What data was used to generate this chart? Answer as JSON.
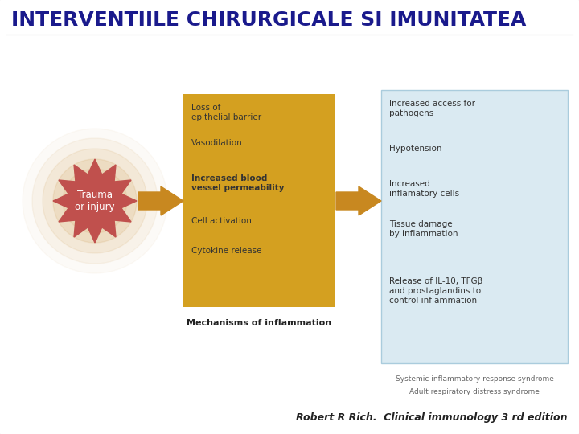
{
  "title": "INTERVENTIILE CHIRURGICALE SI IMUNITATEA",
  "title_color": "#1a1a8c",
  "title_fontsize": 18,
  "bg_color": "#ffffff",
  "citation": "Robert R Rich.  Clinical immunology 3 rd edition",
  "citation_fontsize": 9,
  "trauma_label": "Trauma\nor injury",
  "trauma_color": "#c0504d",
  "trauma_text_color": "#ffffff",
  "glow_color": "#c8903a",
  "orange_box_color": "#d4a020",
  "orange_box_items": [
    "Loss of\nepithelial barrier",
    "Vasodilation",
    "Increased blood\nvessel permeability",
    "Cell activation",
    "Cytokine release"
  ],
  "orange_box_label": "Mechanisms of inflammation",
  "blue_box_color": "#daeaf2",
  "blue_box_border": "#aaccdd",
  "blue_box_items": [
    "Increased access for\npathogens",
    "Hypotension",
    "Increased\ninflamatory cells",
    "Tissue damage\nby inflammation",
    "Release of IL-10, TFGβ\nand prostaglandins to\ncontrol inflammation"
  ],
  "blue_box_label1": "Systemic inflammatory response syndrome",
  "blue_box_label2": "Adult respiratory distress syndrome",
  "arrow_color": "#c88820",
  "text_color": "#444444"
}
